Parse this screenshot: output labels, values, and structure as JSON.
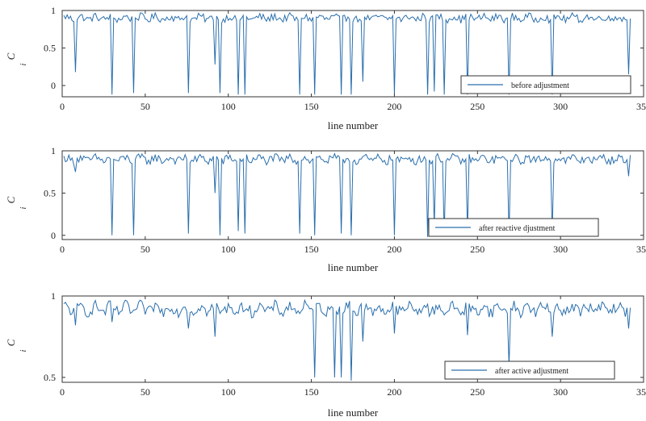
{
  "figure": {
    "line_color": "#2a6fad",
    "axis_color": "#333333"
  },
  "chart_data": [
    {
      "type": "line",
      "ylabel_main": "C",
      "ylabel_sub": "i",
      "xlabel": "line number",
      "xlim": [
        0,
        350
      ],
      "ylim": [
        -0.15,
        1.0
      ],
      "xticks": [
        0,
        50,
        100,
        150,
        200,
        250,
        300,
        350
      ],
      "yticks": [
        0,
        0.5,
        1
      ],
      "ytick_labels": [
        "0",
        "0.5",
        "1"
      ],
      "legend": "before adjustment",
      "legend_position": "bottom-right",
      "baseline_mean": 0.9,
      "baseline_amp": 0.05,
      "n_points": 342,
      "dips": [
        [
          8,
          0.18
        ],
        [
          30,
          -0.12
        ],
        [
          43,
          -0.1
        ],
        [
          76,
          -0.1
        ],
        [
          92,
          0.28
        ],
        [
          95,
          -0.1
        ],
        [
          106,
          -0.12
        ],
        [
          110,
          -0.12
        ],
        [
          143,
          -0.12
        ],
        [
          152,
          -0.12
        ],
        [
          168,
          -0.12
        ],
        [
          174,
          -0.12
        ],
        [
          181,
          0.05
        ],
        [
          200,
          -0.12
        ],
        [
          220,
          -0.12
        ],
        [
          224,
          -0.08
        ],
        [
          230,
          -0.12
        ],
        [
          244,
          -0.12
        ],
        [
          269,
          -0.12
        ],
        [
          295,
          -0.12
        ],
        [
          341,
          0.15
        ]
      ]
    },
    {
      "type": "line",
      "ylabel_main": "C",
      "ylabel_sub": "i",
      "xlabel": "line number",
      "xlim": [
        0,
        350
      ],
      "ylim": [
        -0.05,
        1.0
      ],
      "xticks": [
        0,
        50,
        100,
        150,
        200,
        250,
        300,
        350
      ],
      "yticks": [
        0,
        0.5,
        1
      ],
      "ytick_labels": [
        "0",
        "0.5",
        "1"
      ],
      "legend": "after  reactive djustment",
      "legend_position": "bottom-right",
      "baseline_mean": 0.9,
      "baseline_amp": 0.05,
      "n_points": 342,
      "dips": [
        [
          8,
          0.75
        ],
        [
          30,
          0.0
        ],
        [
          43,
          0.0
        ],
        [
          76,
          0.02
        ],
        [
          92,
          0.5
        ],
        [
          95,
          0.0
        ],
        [
          106,
          0.05
        ],
        [
          110,
          0.02
        ],
        [
          143,
          0.02
        ],
        [
          152,
          0.0
        ],
        [
          168,
          0.02
        ],
        [
          174,
          0.0
        ],
        [
          200,
          0.0
        ],
        [
          220,
          -0.02
        ],
        [
          224,
          0.1
        ],
        [
          230,
          0.0
        ],
        [
          244,
          0.03
        ],
        [
          269,
          0.0
        ],
        [
          295,
          0.03
        ],
        [
          341,
          0.7
        ]
      ]
    },
    {
      "type": "line",
      "ylabel_main": "C",
      "ylabel_sub": "i",
      "xlabel": "line number",
      "xlim": [
        0,
        350
      ],
      "ylim": [
        0.47,
        1.0
      ],
      "xticks": [
        0,
        50,
        100,
        150,
        200,
        250,
        300,
        350
      ],
      "yticks": [
        0.5,
        1
      ],
      "ytick_labels": [
        "0.5",
        "1"
      ],
      "legend": "after active adjustment",
      "legend_position": "bottom-right",
      "baseline_mean": 0.92,
      "baseline_amp": 0.035,
      "n_points": 342,
      "dips": [
        [
          8,
          0.82
        ],
        [
          30,
          0.84
        ],
        [
          76,
          0.8
        ],
        [
          92,
          0.75
        ],
        [
          152,
          0.5
        ],
        [
          164,
          0.5
        ],
        [
          168,
          0.5
        ],
        [
          174,
          0.48
        ],
        [
          181,
          0.72
        ],
        [
          200,
          0.77
        ],
        [
          244,
          0.76
        ],
        [
          269,
          0.57
        ],
        [
          295,
          0.75
        ],
        [
          341,
          0.8
        ]
      ]
    }
  ]
}
